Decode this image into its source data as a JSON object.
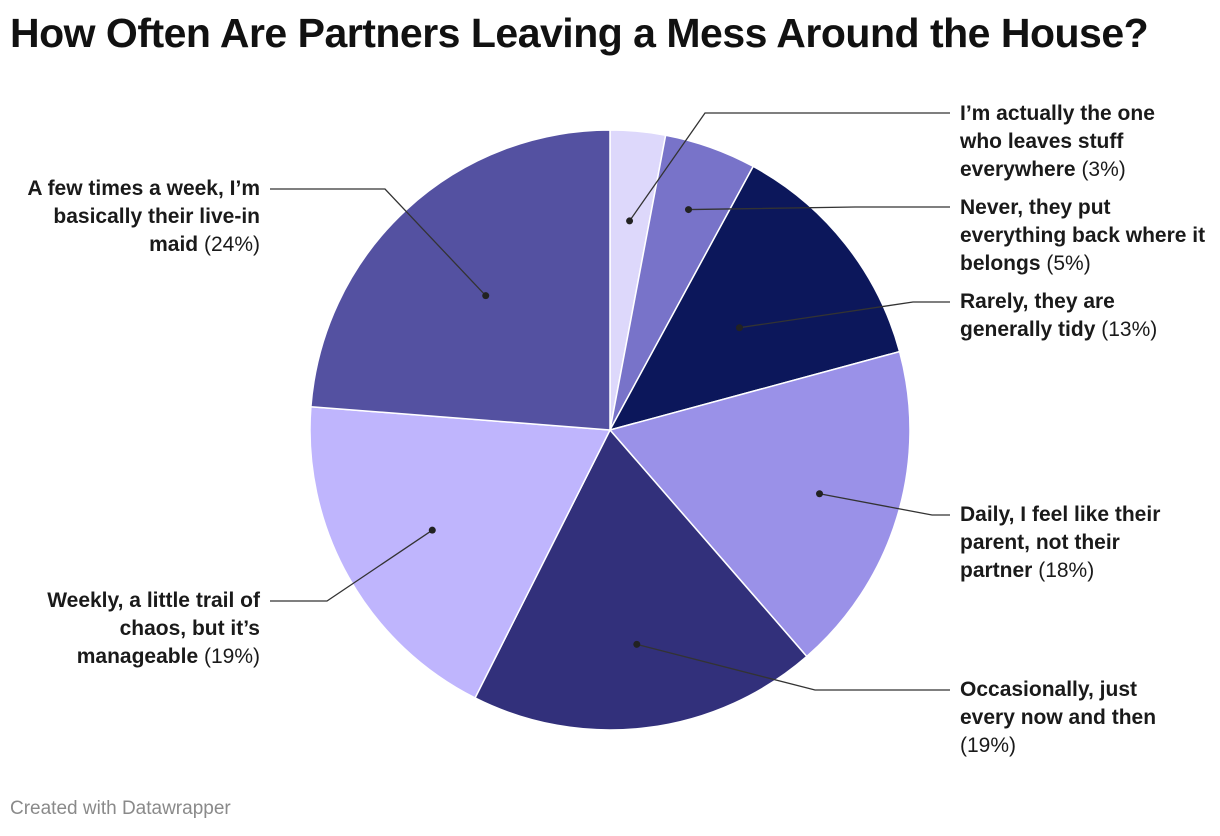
{
  "title": "How Often Are Partners Leaving a Mess Around the House?",
  "credit": "Created with Datawrapper",
  "chart_data": {
    "type": "pie",
    "title": "How Often Are Partners Leaving a Mess Around the House?",
    "start": "12 o'clock",
    "direction": "clockwise",
    "slices": [
      {
        "label": "I’m actually the one who leaves stuff everywhere",
        "value": 3,
        "pct": "(3%)",
        "color": "#ddd8fb"
      },
      {
        "label": "Never, they put everything back where it belongs",
        "value": 5,
        "pct": "(5%)",
        "color": "#7873c9"
      },
      {
        "label": "Rarely, they are generally tidy",
        "value": 13,
        "pct": "(13%)",
        "color": "#0c175b"
      },
      {
        "label": "Daily, I feel like their parent, not their partner",
        "value": 18,
        "pct": "(18%)",
        "color": "#9a91e8"
      },
      {
        "label": "Occasionally, just every now and then",
        "value": 19,
        "pct": "(19%)",
        "color": "#32307b"
      },
      {
        "label": "Weekly, a little trail of chaos, but it’s manageable",
        "value": 19,
        "pct": "(19%)",
        "color": "#bfb5fd"
      },
      {
        "label": "A few times a week, I’m basically their live-in maid",
        "value": 24,
        "pct": "(24%)",
        "color": "#5451a1"
      }
    ]
  }
}
